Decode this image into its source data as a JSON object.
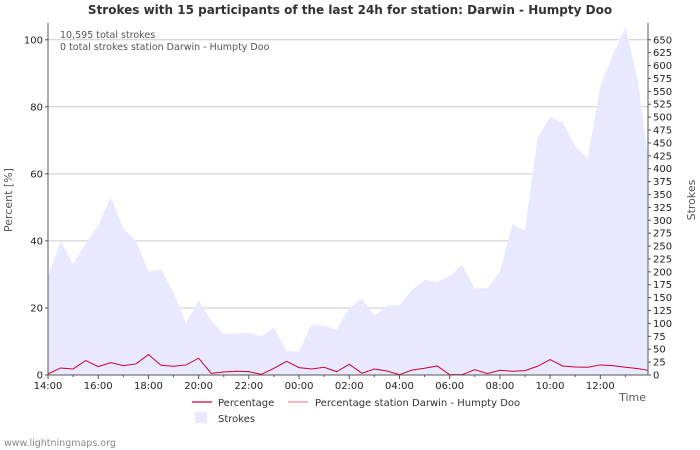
{
  "chart_data": {
    "type": "area",
    "title": "Strokes with 15 participants of the last 24h for station: Darwin - Humpty Doo",
    "ylabel_left": "Percent   [%]",
    "ylabel_right": "Strokes",
    "xlabel": "Time",
    "y_left_range": [
      0,
      105
    ],
    "y_left_ticks": [
      "0",
      "20",
      "40",
      "60",
      "80",
      "100"
    ],
    "y_right_range": [
      0,
      682.5
    ],
    "y_right_ticks": [
      "0",
      "25",
      "50",
      "75",
      "100",
      "125",
      "150",
      "175",
      "200",
      "225",
      "250",
      "275",
      "300",
      "325",
      "350",
      "375",
      "400",
      "425",
      "450",
      "475",
      "500",
      "525",
      "550",
      "575",
      "600",
      "625",
      "650"
    ],
    "x_range": [
      0,
      23.9
    ],
    "x_ticks": [
      "14:00",
      "16:00",
      "18:00",
      "20:00",
      "22:00",
      "00:00",
      "02:00",
      "04:00",
      "06:00",
      "08:00",
      "10:00",
      "12:00"
    ],
    "annotations": [
      "10,595 total strokes",
      "0 total strokes station Darwin - Humpty Doo"
    ],
    "legend": {
      "percentage": "Percentage",
      "percentage_station": "Percentage station Darwin - Humpty Doo",
      "strokes": "Strokes"
    },
    "colors": {
      "strokes_fill": "#e8e8ff",
      "percentage": "#cc0033",
      "percentage_station": "#ff8899",
      "grid": "#cccccc",
      "axis": "#555555"
    },
    "series": [
      {
        "name": "Strokes",
        "axis": "right",
        "x": [
          0,
          0.5,
          1,
          1.5,
          2,
          2.5,
          3,
          3.5,
          4,
          4.5,
          5,
          5.5,
          6,
          6.5,
          7,
          7.5,
          8,
          8.5,
          9,
          9.5,
          10,
          10.5,
          11,
          11.5,
          12,
          12.5,
          13,
          13.5,
          14,
          14.5,
          15,
          15.5,
          16,
          16.5,
          17,
          17.5,
          18,
          18.5,
          19,
          19.5,
          20,
          20.5,
          21,
          21.5,
          22,
          22.5,
          23,
          23.5,
          23.9
        ],
        "values": [
          190,
          260,
          215,
          255,
          290,
          345,
          285,
          260,
          200,
          205,
          160,
          100,
          145,
          105,
          80,
          80,
          82,
          75,
          92,
          47,
          45,
          98,
          95,
          88,
          130,
          148,
          115,
          135,
          135,
          165,
          185,
          180,
          192,
          213,
          168,
          168,
          200,
          292,
          280,
          460,
          500,
          490,
          443,
          420,
          560,
          620,
          675,
          570,
          420
        ]
      },
      {
        "name": "Percentage",
        "axis": "left",
        "x": [
          0,
          0.5,
          1,
          1.5,
          2,
          2.5,
          3,
          3.5,
          4,
          4.5,
          5,
          5.5,
          6,
          6.5,
          7,
          7.5,
          8,
          8.5,
          9,
          9.5,
          10,
          10.5,
          11,
          11.5,
          12,
          12.5,
          13,
          13.5,
          14,
          14.5,
          15,
          15.5,
          16,
          16.5,
          17,
          17.5,
          18,
          18.5,
          19,
          19.5,
          20,
          20.5,
          21,
          21.5,
          22,
          22.5,
          23,
          23.5,
          23.9
        ],
        "values": [
          0.3,
          2.1,
          1.8,
          4.3,
          2.5,
          3.7,
          2.8,
          3.3,
          6.1,
          2.9,
          2.6,
          3.0,
          5.0,
          0.5,
          0.9,
          1.1,
          1.0,
          0.2,
          2.0,
          4.1,
          2.2,
          1.8,
          2.3,
          1.0,
          3.2,
          0.5,
          1.8,
          1.2,
          0.1,
          1.5,
          2.0,
          2.7,
          0.1,
          0.1,
          1.6,
          0.4,
          1.4,
          1.1,
          1.3,
          2.6,
          4.6,
          2.7,
          2.4,
          2.3,
          3.0,
          2.8,
          2.3,
          1.9,
          1.4
        ]
      },
      {
        "name": "Percentage station Darwin - Humpty Doo",
        "axis": "left",
        "x": [],
        "values": []
      }
    ]
  },
  "footer": "www.lightningmaps.org"
}
